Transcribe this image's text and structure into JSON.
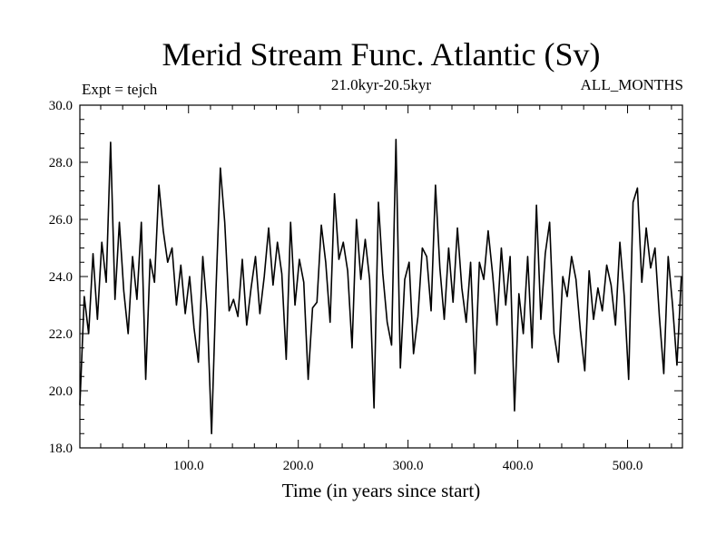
{
  "chart_data": {
    "type": "line",
    "title": "Merid Stream Func. Atlantic (Sv)",
    "subtitle": "21.0kyr-20.5kyr",
    "left_label": "Expt = tejch",
    "right_label": "ALL_MONTHS",
    "xlabel": "Time (in years since start)",
    "ylabel": "",
    "xlim": [
      1,
      550
    ],
    "ylim": [
      18.0,
      30.0
    ],
    "xticks": [
      100,
      200,
      300,
      400,
      500
    ],
    "xtick_labels": [
      "100.0",
      "200.0",
      "300.0",
      "400.0",
      "500.0"
    ],
    "yticks": [
      18,
      20,
      22,
      24,
      26,
      28,
      30
    ],
    "ytick_labels": [
      "18.0",
      "20.0",
      "22.0",
      "24.0",
      "26.0",
      "28.0",
      "30.0"
    ],
    "series": [
      {
        "name": "Merid Stream Func. Atlantic",
        "color": "#000000",
        "x": [
          1,
          5,
          9,
          13,
          17,
          21,
          25,
          29,
          33,
          37,
          41,
          45,
          49,
          53,
          57,
          61,
          65,
          69,
          73,
          77,
          81,
          85,
          89,
          93,
          97,
          101,
          105,
          109,
          113,
          117,
          121,
          125,
          129,
          133,
          137,
          141,
          145,
          149,
          153,
          157,
          161,
          165,
          169,
          173,
          177,
          181,
          185,
          189,
          193,
          197,
          201,
          205,
          209,
          213,
          217,
          221,
          225,
          229,
          233,
          237,
          241,
          245,
          249,
          253,
          257,
          261,
          265,
          269,
          273,
          277,
          281,
          285,
          289,
          293,
          297,
          301,
          305,
          309,
          313,
          317,
          321,
          325,
          329,
          333,
          337,
          341,
          345,
          349,
          353,
          357,
          361,
          365,
          369,
          373,
          377,
          381,
          385,
          389,
          393,
          397,
          401,
          405,
          409,
          413,
          417,
          421,
          425,
          429,
          433,
          437,
          441,
          445,
          449,
          453,
          457,
          461,
          465,
          469,
          473,
          477,
          481,
          485,
          489,
          493,
          497,
          501,
          505,
          509,
          513,
          517,
          521,
          525,
          529,
          533,
          537,
          541,
          545,
          549
        ],
        "values": [
          19.5,
          23.3,
          22.0,
          24.8,
          22.5,
          25.2,
          23.8,
          28.7,
          23.2,
          25.9,
          23.5,
          22.0,
          24.7,
          23.2,
          25.9,
          20.4,
          24.6,
          23.8,
          27.2,
          25.6,
          24.5,
          25.0,
          23.0,
          24.4,
          22.7,
          24.0,
          22.2,
          21.0,
          24.7,
          22.8,
          18.5,
          23.5,
          27.8,
          25.9,
          22.8,
          23.2,
          22.6,
          24.6,
          22.3,
          23.6,
          24.7,
          22.7,
          24.0,
          25.7,
          23.7,
          25.2,
          24.1,
          21.1,
          25.9,
          23.0,
          24.6,
          23.8,
          20.4,
          22.9,
          23.1,
          25.8,
          24.5,
          22.4,
          26.9,
          24.6,
          25.2,
          24.2,
          21.5,
          26.0,
          23.9,
          25.3,
          23.9,
          19.4,
          26.6,
          24.1,
          22.4,
          21.6,
          28.8,
          20.8,
          23.9,
          24.5,
          21.3,
          22.6,
          25.0,
          24.7,
          22.8,
          27.2,
          24.3,
          22.5,
          25.0,
          23.1,
          25.7,
          23.6,
          22.4,
          24.5,
          20.6,
          24.5,
          23.9,
          25.6,
          24.1,
          22.3,
          25.0,
          23.0,
          24.7,
          19.3,
          23.4,
          22.0,
          24.7,
          21.5,
          26.5,
          22.5,
          24.8,
          25.9,
          22.0,
          21.0,
          24.0,
          23.3,
          24.7,
          23.9,
          22.1,
          20.7,
          24.2,
          22.5,
          23.6,
          22.8,
          24.4,
          23.7,
          22.3,
          25.2,
          23.3,
          20.4,
          26.6,
          27.1,
          23.8,
          25.7,
          24.3,
          25.0,
          22.6,
          20.6,
          24.7,
          23.0,
          20.9,
          24.0
        ]
      }
    ]
  }
}
